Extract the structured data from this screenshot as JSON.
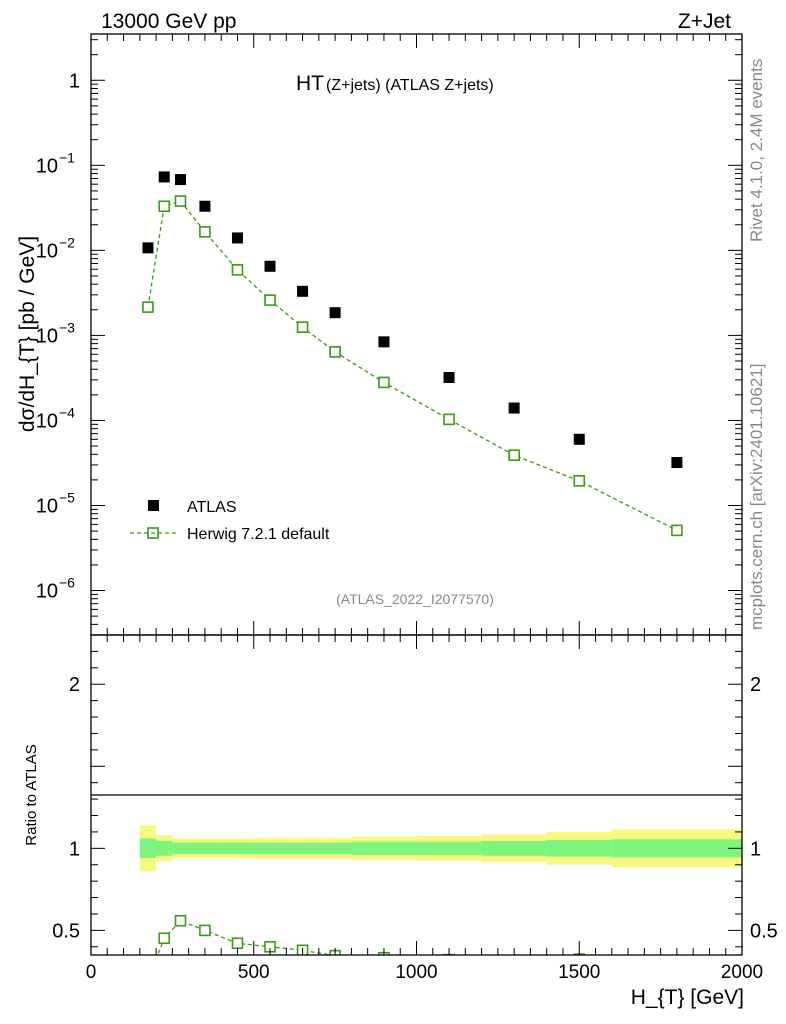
{
  "header": {
    "energy": "13000 GeV pp",
    "process": "Z+Jet"
  },
  "side": {
    "rivet": "Rivet 4.1.0,  2.4M events",
    "mcplots": "mcplots.cern.ch [arXiv:2401.10621]"
  },
  "chart_data": {
    "type": "scatter",
    "title_main": "HT",
    "title_sub": "(Z+jets) (ATLAS Z+jets)",
    "watermark": "(ATLAS_2022_I2077570)",
    "ylabel": "dσ/dH_{T} [pb / GeV]",
    "xlabel": "H_{T} [GeV]",
    "ratio_ylabel": "Ratio to ATLAS",
    "xlim": [
      0,
      2000
    ],
    "ylim_log": [
      3e-07,
      3.5
    ],
    "ratio_ylim": [
      0.35,
      2.3
    ],
    "x_ticks": [
      "0",
      "500",
      "1000",
      "1500",
      "2000"
    ],
    "y_ticks": [
      {
        "base": "1",
        "exp": ""
      },
      {
        "base": "10",
        "exp": "−1"
      },
      {
        "base": "10",
        "exp": "−2"
      },
      {
        "base": "10",
        "exp": "−3"
      },
      {
        "base": "10",
        "exp": "−4"
      },
      {
        "base": "10",
        "exp": "−5"
      },
      {
        "base": "10",
        "exp": "−6"
      }
    ],
    "ratio_ticks": [
      "2",
      "1",
      "0.5"
    ],
    "legend": {
      "data_label": "ATLAS",
      "mc_label": "Herwig 7.2.1 default"
    },
    "colors": {
      "mc": "#3a9a10",
      "band_inner": "#7df57d",
      "band_outer": "#f8f880",
      "data": "#000000"
    },
    "bins": [
      {
        "lo": 150,
        "hi": 200,
        "x": 175,
        "data": 0.0107,
        "mc": 0.00215,
        "unc_in": 0.06,
        "unc_out": 0.14
      },
      {
        "lo": 200,
        "hi": 250,
        "x": 225,
        "data": 0.073,
        "mc": 0.033,
        "unc_in": 0.045,
        "unc_out": 0.08
      },
      {
        "lo": 250,
        "hi": 300,
        "x": 275,
        "data": 0.068,
        "mc": 0.038,
        "unc_in": 0.035,
        "unc_out": 0.06
      },
      {
        "lo": 300,
        "hi": 400,
        "x": 350,
        "data": 0.033,
        "mc": 0.0165,
        "unc_in": 0.035,
        "unc_out": 0.06
      },
      {
        "lo": 400,
        "hi": 500,
        "x": 450,
        "data": 0.014,
        "mc": 0.0059,
        "unc_in": 0.035,
        "unc_out": 0.06
      },
      {
        "lo": 500,
        "hi": 600,
        "x": 550,
        "data": 0.0065,
        "mc": 0.0026,
        "unc_in": 0.035,
        "unc_out": 0.065
      },
      {
        "lo": 600,
        "hi": 700,
        "x": 650,
        "data": 0.0033,
        "mc": 0.00125,
        "unc_in": 0.035,
        "unc_out": 0.065
      },
      {
        "lo": 700,
        "hi": 800,
        "x": 750,
        "data": 0.00185,
        "mc": 0.00064,
        "unc_in": 0.035,
        "unc_out": 0.065
      },
      {
        "lo": 800,
        "hi": 1000,
        "x": 900,
        "data": 0.00084,
        "mc": 0.00028,
        "unc_in": 0.04,
        "unc_out": 0.07
      },
      {
        "lo": 1000,
        "hi": 1200,
        "x": 1100,
        "data": 0.00032,
        "mc": 0.000103,
        "unc_in": 0.04,
        "unc_out": 0.075
      },
      {
        "lo": 1200,
        "hi": 1400,
        "x": 1300,
        "data": 0.00014,
        "mc": 3.9e-05,
        "unc_in": 0.045,
        "unc_out": 0.085
      },
      {
        "lo": 1400,
        "hi": 1600,
        "x": 1500,
        "data": 6e-05,
        "mc": 1.95e-05,
        "unc_in": 0.05,
        "unc_out": 0.1
      },
      {
        "lo": 1600,
        "hi": 2000,
        "x": 1800,
        "data": 3.2e-05,
        "mc": 5.1e-06,
        "unc_in": 0.055,
        "unc_out": 0.115
      }
    ]
  }
}
